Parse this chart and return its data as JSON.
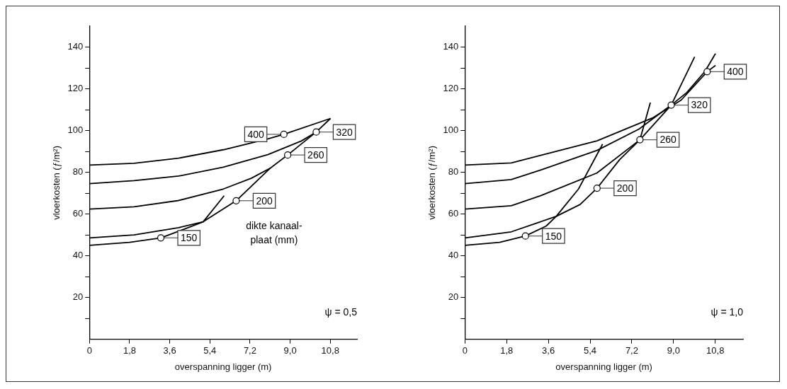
{
  "chart_data": [
    {
      "type": "line",
      "xlabel": "overspanning ligger (m)",
      "ylabel": "vloerkosten (ƒ/m²)",
      "xlim": [
        0,
        12
      ],
      "ylim": [
        0,
        150
      ],
      "xticks": [
        0,
        {
          "value": 1.8,
          "label": "1,8"
        },
        {
          "value": 3.6,
          "label": "3,6"
        },
        {
          "value": 5.4,
          "label": "5,4"
        },
        {
          "value": 7.2,
          "label": "7,2"
        },
        {
          "value": 9.0,
          "label": "9,0"
        },
        {
          "value": 10.8,
          "label": "10,8"
        }
      ],
      "yticks": [
        {
          "value": 10,
          "label": null
        },
        20,
        {
          "value": 30,
          "label": null
        },
        40,
        {
          "value": 50,
          "label": null
        },
        60,
        {
          "value": 70,
          "label": null
        },
        80,
        {
          "value": 90,
          "label": null
        },
        100,
        {
          "value": 110,
          "label": null
        },
        120,
        {
          "value": 130,
          "label": null
        },
        140
      ],
      "series": [
        {
          "color": "#000000",
          "x": [
            0,
            2,
            4,
            6,
            8,
            8.72,
            10.81
          ],
          "values": [
            83.5,
            84.3,
            86.8,
            90.8,
            96,
            98.2,
            105.8
          ]
        },
        {
          "color": "#000000",
          "x": [
            0,
            2,
            4,
            6,
            8,
            9.5,
            10.17,
            10.81
          ],
          "values": [
            74.6,
            76,
            78.2,
            82.5,
            88.5,
            95,
            99.3,
            105.8
          ]
        },
        {
          "color": "#000000",
          "x": [
            0,
            2,
            4,
            6,
            7.27,
            8.12,
            8.89,
            10.17
          ],
          "values": [
            62.4,
            63.5,
            66.5,
            72,
            77.2,
            82.1,
            88.3,
            99.3
          ]
        },
        {
          "color": "#000000",
          "x": [
            0,
            2,
            4,
            5.1,
            6.58,
            8.12
          ],
          "values": [
            48.6,
            50,
            53.5,
            56.3,
            66.4,
            82.1
          ]
        },
        {
          "color": "#000000",
          "x": [
            0,
            1.8,
            3.2,
            4.3,
            5.1,
            6.04
          ],
          "values": [
            45,
            46.5,
            48.6,
            53,
            56.3,
            68.8
          ]
        }
      ],
      "annotations": [
        {
          "text": "150",
          "x": 3.2,
          "y": 48.6
        },
        {
          "text": "200",
          "x": 6.58,
          "y": 66.4
        },
        {
          "text": "260",
          "x": 8.89,
          "y": 88.3
        },
        {
          "text": "320",
          "x": 10.17,
          "y": 99.3
        },
        {
          "text": "400",
          "x": 8.72,
          "y": 98.2
        },
        "dikte kanaal-\nplaat (mm)",
        "ψ = 0,5"
      ]
    },
    {
      "type": "line",
      "xlabel": "overspanning ligger (m)",
      "ylabel": "vloerkosten (ƒ/m²)",
      "xlim": [
        0,
        12
      ],
      "ylim": [
        0,
        150
      ],
      "xticks": [
        0,
        {
          "value": 1.8,
          "label": "1,8"
        },
        {
          "value": 3.6,
          "label": "3,6"
        },
        {
          "value": 5.4,
          "label": "5,4"
        },
        {
          "value": 7.2,
          "label": "7,2"
        },
        {
          "value": 9.0,
          "label": "9,0"
        },
        {
          "value": 10.8,
          "label": "10,8"
        }
      ],
      "yticks": [
        {
          "value": 10,
          "label": null
        },
        20,
        {
          "value": 30,
          "label": null
        },
        40,
        {
          "value": 50,
          "label": null
        },
        60,
        {
          "value": 70,
          "label": null
        },
        80,
        {
          "value": 90,
          "label": null
        },
        100,
        {
          "value": 110,
          "label": null
        },
        120,
        {
          "value": 130,
          "label": null
        },
        140
      ],
      "series": [
        {
          "color": "#000000",
          "x": [
            0,
            2,
            3.27,
            5.7,
            8.12,
            9.33,
            10.45,
            10.81
          ],
          "values": [
            83.5,
            84.5,
            88.1,
            95.1,
            106.2,
            114.6,
            128.2,
            131.2
          ]
        },
        {
          "color": "#000000",
          "x": [
            0,
            2,
            3.27,
            5.7,
            7.51,
            8.9,
            9.57,
            10.36,
            10.81
          ],
          "values": [
            74.6,
            76.5,
            81.1,
            90.5,
            100.7,
            112.2,
            118.2,
            128.4,
            136.9
          ]
        },
        {
          "color": "#000000",
          "x": [
            0,
            2,
            3.27,
            5.7,
            7.55,
            8.9,
            9.91
          ],
          "values": [
            62.4,
            64,
            68.8,
            79.7,
            95.6,
            112.2,
            135.3
          ]
        },
        {
          "color": "#000000",
          "x": [
            0,
            2,
            3.94,
            4.97,
            5.7,
            6.67,
            7.55,
            8.0
          ],
          "values": [
            48.6,
            51.5,
            58.9,
            64.6,
            72.4,
            86,
            95.6,
            113.4
          ]
        },
        {
          "color": "#000000",
          "x": [
            0,
            1.5,
            2.61,
            3.51,
            3.94,
            4.9,
            5.94
          ],
          "values": [
            45,
            46.5,
            49.5,
            54.3,
            58.9,
            72,
            93.5
          ]
        }
      ],
      "annotations": [
        {
          "text": "150",
          "x": 2.61,
          "y": 49.5
        },
        {
          "text": "200",
          "x": 5.7,
          "y": 72.4
        },
        {
          "text": "260",
          "x": 7.55,
          "y": 95.6
        },
        {
          "text": "320",
          "x": 8.9,
          "y": 112.2
        },
        {
          "text": "400",
          "x": 10.45,
          "y": 128.2
        },
        "ψ = 1,0"
      ]
    }
  ]
}
